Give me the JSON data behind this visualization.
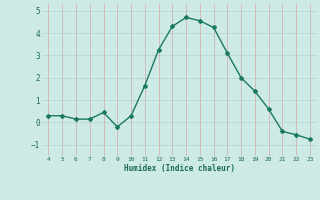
{
  "x": [
    4,
    5,
    6,
    7,
    8,
    9,
    10,
    11,
    12,
    13,
    14,
    15,
    16,
    17,
    18,
    19,
    20,
    21,
    22,
    23
  ],
  "y": [
    0.3,
    0.3,
    0.15,
    0.15,
    0.45,
    -0.2,
    0.3,
    1.65,
    3.25,
    4.3,
    4.7,
    4.55,
    4.25,
    3.1,
    2.0,
    1.4,
    0.6,
    -0.4,
    -0.55,
    -0.75
  ],
  "line_color": "#1a7a5e",
  "marker": "D",
  "marker_size": 2.0,
  "xlabel": "Humidex (Indice chaleur)",
  "xlim": [
    3.5,
    23.5
  ],
  "ylim": [
    -1.5,
    5.3
  ],
  "yticks": [
    -1,
    0,
    1,
    2,
    3,
    4,
    5
  ],
  "xticks": [
    4,
    5,
    6,
    7,
    8,
    9,
    10,
    11,
    12,
    13,
    14,
    15,
    16,
    17,
    18,
    19,
    20,
    21,
    22,
    23
  ],
  "bg_color": "#ceeae6",
  "grid_color_h": "#b8d8d4",
  "grid_color_v": "#d4a8a8",
  "tick_label_color": "#1a6a5a",
  "xlabel_color": "#1a6a5a",
  "line_width": 1.0
}
